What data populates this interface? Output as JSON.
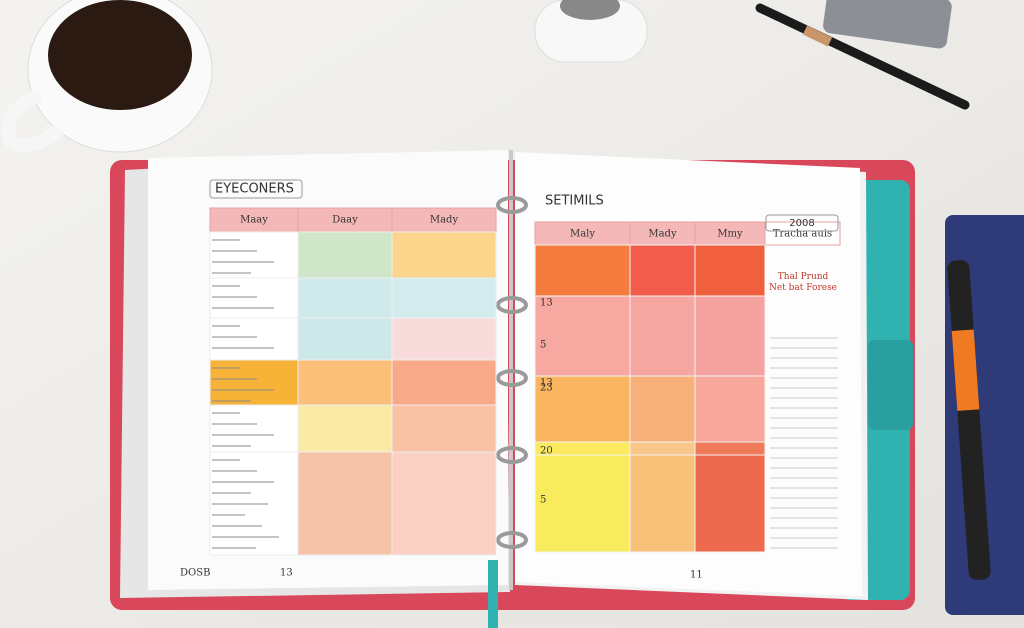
{
  "left_page": {
    "title": "EYECONERS",
    "headers": [
      "Maay",
      "Daay",
      "Mady"
    ],
    "footer": [
      "DOSB",
      "13"
    ]
  },
  "right_page": {
    "title": "SETIMILS",
    "badge": "2008",
    "headers": [
      "Maly",
      "Mady",
      "Mmy",
      "Tracha auis"
    ],
    "note": "Thal Prund Net bat Forese",
    "row_labels": [
      "13",
      "5",
      "13",
      "23",
      "20",
      "5"
    ],
    "footer": "11"
  }
}
